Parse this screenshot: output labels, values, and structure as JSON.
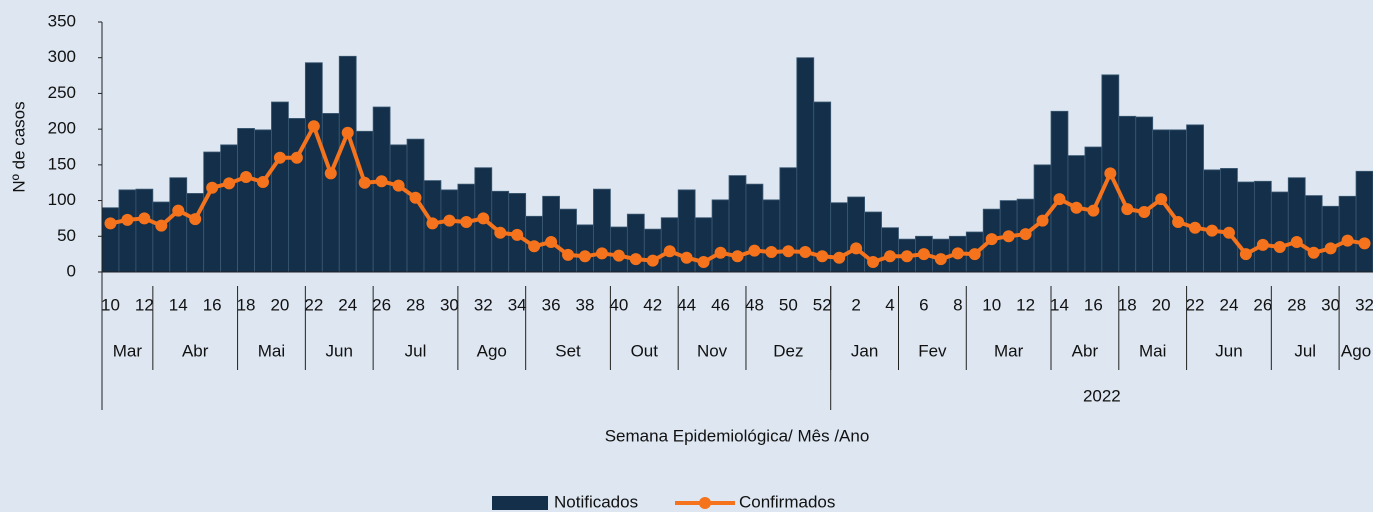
{
  "chart_data": {
    "type": "combo",
    "y_label": "Nº de casos",
    "x_label": "Semana Epidemiológica/ Mês /Ano",
    "categories": [
      "10",
      null,
      "12",
      null,
      "14",
      null,
      "16",
      null,
      "18",
      null,
      "20",
      null,
      "22",
      null,
      "24",
      null,
      "26",
      null,
      "28",
      null,
      "30",
      null,
      "32",
      null,
      "34",
      null,
      "36",
      null,
      "38",
      null,
      "40",
      null,
      "42",
      null,
      "44",
      null,
      "46",
      null,
      "48",
      null,
      "50",
      null,
      "52",
      null,
      "2",
      null,
      "4",
      null,
      "6",
      null,
      "8",
      null,
      "10",
      null,
      "12",
      null,
      "14",
      null,
      "16",
      null,
      "18",
      null,
      "20",
      null,
      "22",
      null,
      "24",
      null,
      "26",
      null,
      "28",
      null,
      "30",
      null,
      "32"
    ],
    "month_groups": [
      {
        "label": "Mar",
        "span": 3
      },
      {
        "label": "Abr",
        "span": 5
      },
      {
        "label": "Mai",
        "span": 4
      },
      {
        "label": "Jun",
        "span": 4
      },
      {
        "label": "Jul",
        "span": 5
      },
      {
        "label": "Ago",
        "span": 4
      },
      {
        "label": "Set",
        "span": 5
      },
      {
        "label": "Out",
        "span": 4
      },
      {
        "label": "Nov",
        "span": 4
      },
      {
        "label": "Dez",
        "span": 5
      },
      {
        "label": "Jan",
        "span": 4
      },
      {
        "label": "Fev",
        "span": 4
      },
      {
        "label": "Mar",
        "span": 5
      },
      {
        "label": "Abr",
        "span": 4
      },
      {
        "label": "Mai",
        "span": 4
      },
      {
        "label": "Jun",
        "span": 5
      },
      {
        "label": "Jul",
        "span": 4
      },
      {
        "label": "Ago",
        "span": 2
      }
    ],
    "year_groups": [
      {
        "label": null,
        "span": 43
      },
      {
        "label": "2022",
        "span": 32
      }
    ],
    "series": [
      {
        "name": "Notificados",
        "type": "bar",
        "color": "#132f49",
        "values": [
          90,
          115,
          116,
          98,
          132,
          110,
          168,
          178,
          201,
          199,
          238,
          215,
          293,
          222,
          302,
          197,
          231,
          178,
          186,
          128,
          115,
          123,
          146,
          113,
          110,
          78,
          106,
          88,
          66,
          116,
          63,
          81,
          60,
          76,
          115,
          76,
          101,
          135,
          123,
          101,
          146,
          300,
          238,
          97,
          105,
          84,
          62,
          46,
          50,
          46,
          50,
          56,
          88,
          100,
          102,
          150,
          225,
          163,
          175,
          276,
          218,
          217,
          199,
          199,
          206,
          143,
          145,
          126,
          127,
          112,
          132,
          107,
          92,
          106,
          141
        ]
      },
      {
        "name": "Confirmados",
        "type": "line",
        "color": "#f4731c",
        "values": [
          68,
          73,
          75,
          65,
          86,
          74,
          118,
          124,
          133,
          126,
          160,
          160,
          204,
          138,
          195,
          125,
          127,
          121,
          104,
          68,
          72,
          70,
          75,
          55,
          52,
          36,
          42,
          24,
          22,
          26,
          23,
          18,
          16,
          29,
          20,
          14,
          27,
          22,
          30,
          28,
          29,
          28,
          22,
          20,
          33,
          14,
          22,
          22,
          25,
          18,
          26,
          25,
          46,
          50,
          53,
          72,
          102,
          90,
          86,
          138,
          88,
          84,
          102,
          70,
          62,
          58,
          55,
          25,
          38,
          35,
          42,
          27,
          33,
          44,
          40
        ]
      }
    ],
    "ylim": [
      0,
      350
    ],
    "yticks": [
      0,
      50,
      100,
      150,
      200,
      250,
      300,
      350
    ],
    "legend": "bottom"
  }
}
